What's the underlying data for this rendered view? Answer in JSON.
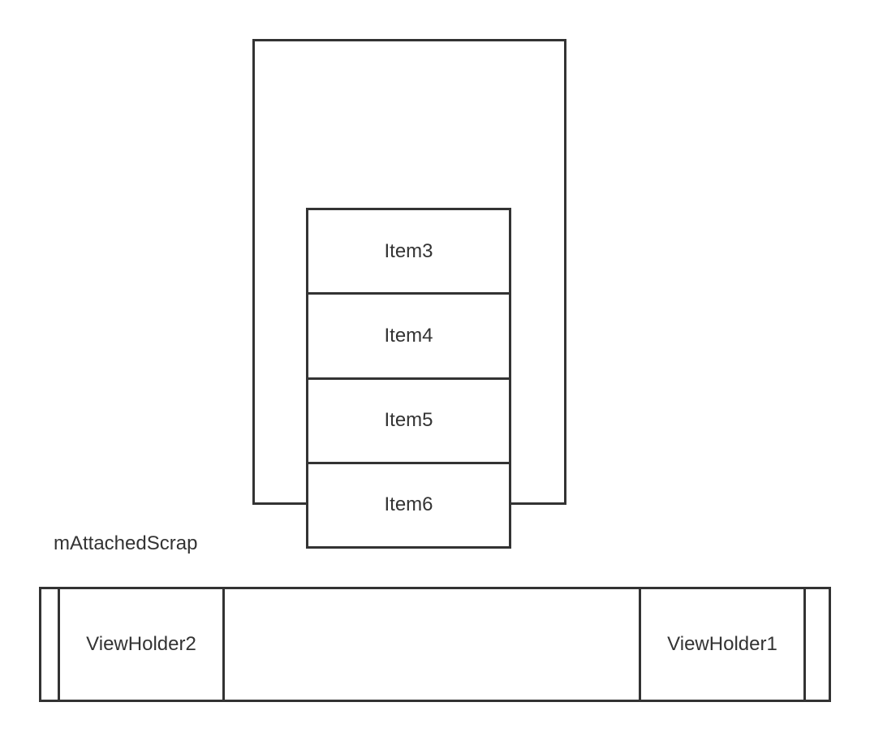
{
  "list": {
    "items": [
      {
        "label": "Item3"
      },
      {
        "label": "Item4"
      },
      {
        "label": "Item5"
      },
      {
        "label": "Item6"
      }
    ]
  },
  "scrap": {
    "caption": "mAttachedScrap",
    "slots": [
      {
        "label": "ViewHolder2"
      },
      {
        "label": "ViewHolder1"
      }
    ]
  },
  "colors": {
    "stroke": "#333333",
    "background": "#ffffff"
  }
}
